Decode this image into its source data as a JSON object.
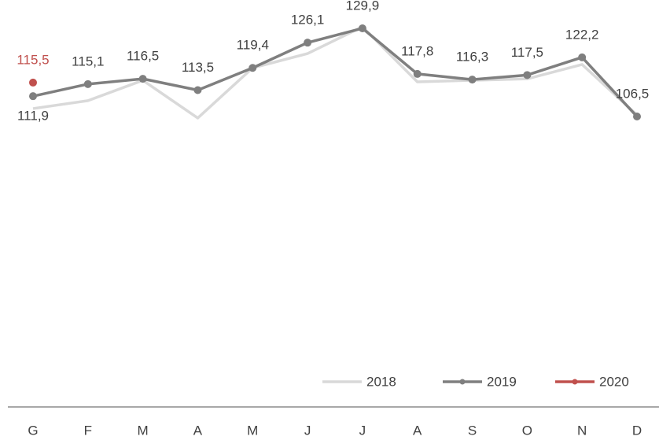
{
  "chart_data": {
    "type": "line",
    "categories": [
      "G",
      "F",
      "M",
      "A",
      "M",
      "J",
      "J",
      "A",
      "S",
      "O",
      "N",
      "D"
    ],
    "series": [
      {
        "name": "2018",
        "color": "#d9d9d9",
        "markers": false,
        "values": [
          108.6,
          110.7,
          116.1,
          106.1,
          119.4,
          123.2,
          130.3,
          115.7,
          116.1,
          116.5,
          120.3,
          106.9
        ]
      },
      {
        "name": "2019",
        "color": "#7f7f7f",
        "markers": true,
        "values": [
          111.9,
          115.1,
          116.5,
          113.5,
          119.4,
          126.1,
          129.9,
          117.8,
          116.3,
          117.5,
          122.2,
          106.5
        ],
        "value_labels": [
          "111,9",
          "115,1",
          "116,5",
          "113,5",
          "119,4",
          "126,1",
          "129,9",
          "117,8",
          "116,3",
          "117,5",
          "122,2",
          "106,5"
        ]
      },
      {
        "name": "2020",
        "color": "#c0504d",
        "markers": true,
        "values": [
          115.5,
          null,
          null,
          null,
          null,
          null,
          null,
          null,
          null,
          null,
          null,
          null
        ],
        "value_labels": [
          "115,5",
          null,
          null,
          null,
          null,
          null,
          null,
          null,
          null,
          null,
          null,
          null
        ]
      }
    ],
    "ylim": [
      29,
      137
    ],
    "legend": "bottom-right"
  }
}
